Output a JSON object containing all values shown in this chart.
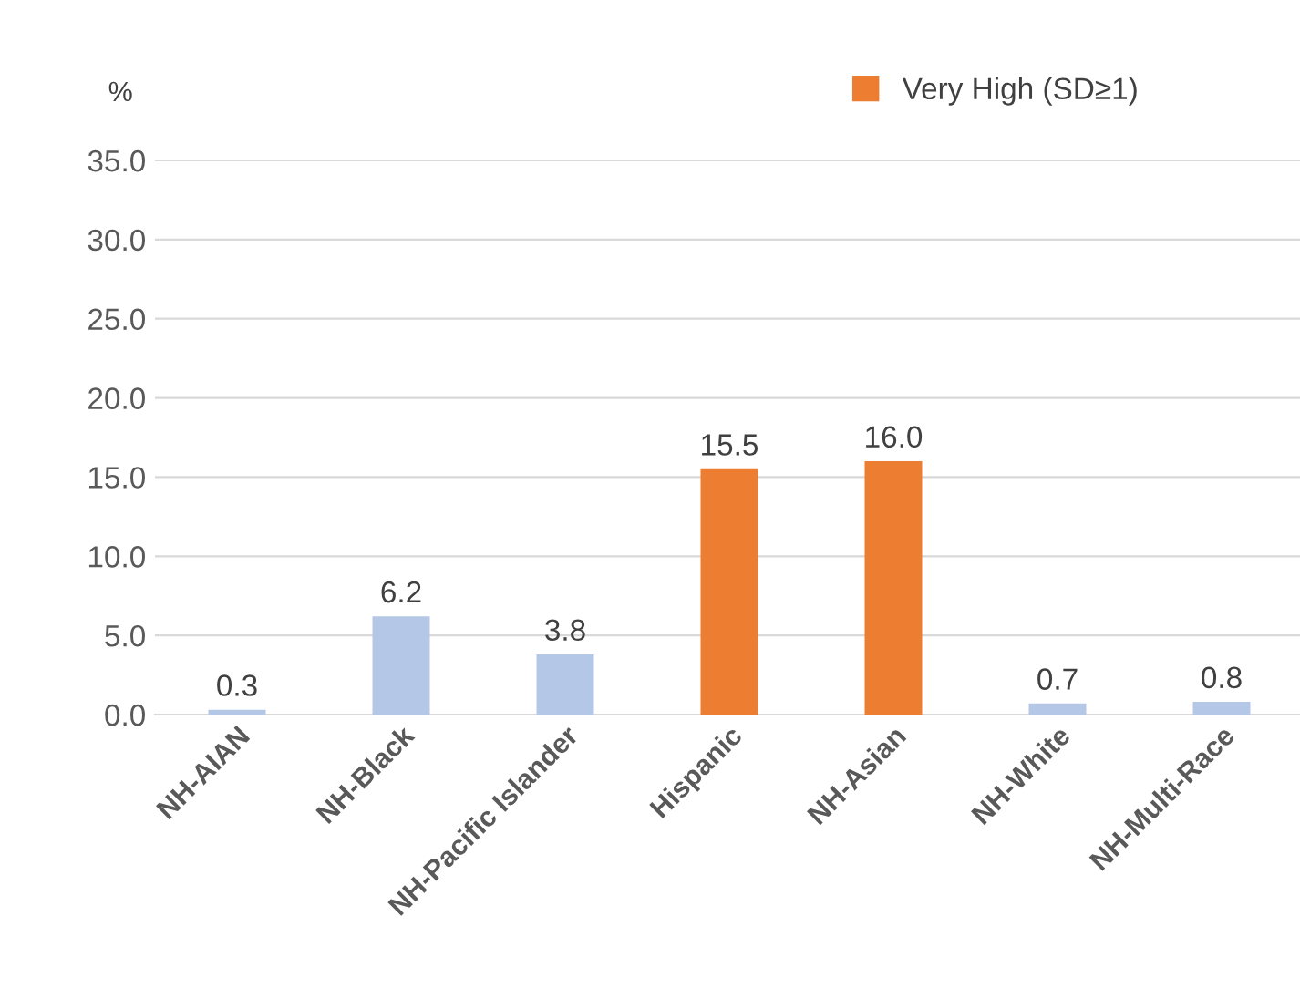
{
  "chart_data": {
    "type": "bar",
    "ylabel": "%",
    "categories": [
      "NH-AIAN",
      "NH-Black",
      "NH-Pacific Islander",
      "Hispanic",
      "NH-Asian",
      "NH-White",
      "NH-Multi-Race"
    ],
    "series": [
      {
        "name": "Very High (SD≥1)",
        "color": "#ed7d31",
        "colors": [
          "#b4c7e7",
          "#b4c7e7",
          "#b4c7e7",
          "#ed7d31",
          "#ed7d31",
          "#b4c7e7",
          "#b4c7e7"
        ],
        "values": [
          0.3,
          6.2,
          3.8,
          15.5,
          16.0,
          0.7,
          0.8
        ],
        "value_labels": [
          "0.3",
          "6.2",
          "3.8",
          "15.5",
          "16.0",
          "0.7",
          "0.8"
        ]
      }
    ],
    "ylim": [
      0,
      35
    ],
    "yticks": [
      {
        "value": 0,
        "label": "0.0"
      },
      {
        "value": 5,
        "label": "5.0"
      },
      {
        "value": 10,
        "label": "10.0"
      },
      {
        "value": 15,
        "label": "15.0"
      },
      {
        "value": 20,
        "label": "20.0"
      },
      {
        "value": 25,
        "label": "25.0"
      },
      {
        "value": 30,
        "label": "30.0"
      },
      {
        "value": 35,
        "label": "35.0"
      }
    ],
    "grid": "y",
    "legend": "top right"
  }
}
